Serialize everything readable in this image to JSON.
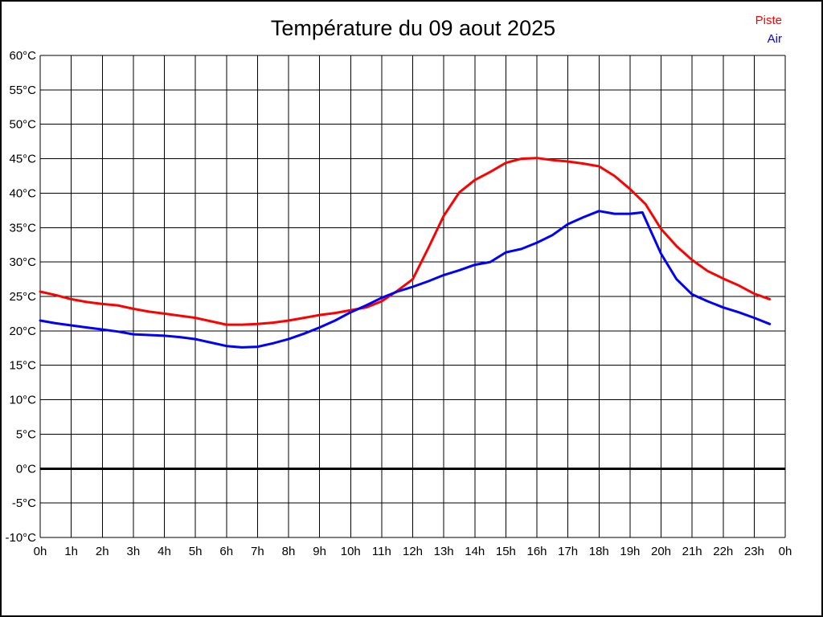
{
  "page": {
    "background": "#ffffff",
    "border_color": "#000000"
  },
  "header": {
    "title": "Température du 09 aout 2025"
  },
  "legend": {
    "items": [
      {
        "label": "Piste",
        "color": "#ff0000"
      },
      {
        "label": "Air",
        "color": "#0000ff"
      }
    ]
  },
  "chart_data": {
    "type": "line",
    "title": "Température du 09 aout 2025",
    "grid": true,
    "legend_position": "top-right",
    "x_axis": {
      "min": 0,
      "max": 24,
      "unit": "h",
      "tick_labels": [
        "0h",
        "1h",
        "2h",
        "3h",
        "4h",
        "5h",
        "6h",
        "7h",
        "8h",
        "9h",
        "10h",
        "11h",
        "12h",
        "13h",
        "14h",
        "15h",
        "16h",
        "17h",
        "18h",
        "19h",
        "20h",
        "21h",
        "22h",
        "23h",
        "0h"
      ]
    },
    "y_axis": {
      "min": -10,
      "max": 60,
      "step": 5,
      "unit": "°C",
      "tick_labels": [
        "60°C",
        "55°C",
        "50°C",
        "45°C",
        "40°C",
        "35°C",
        "30°C",
        "25°C",
        "20°C",
        "15°C",
        "10°C",
        "5°C",
        "0°C",
        "-5°C",
        "-10°C"
      ],
      "zero_line_bold": true
    },
    "series": [
      {
        "name": "Piste",
        "color": "#ff0000",
        "x": [
          0,
          0.5,
          1,
          1.5,
          2,
          2.5,
          3,
          3.5,
          4,
          4.5,
          5,
          5.5,
          6,
          6.5,
          7,
          7.5,
          8,
          8.5,
          9,
          9.5,
          10,
          10.5,
          11,
          11.5,
          12,
          12.5,
          13,
          13.5,
          14,
          14.5,
          15,
          15.5,
          16,
          16.5,
          17,
          17.5,
          18,
          18.5,
          19,
          19.5,
          20,
          20.5,
          21,
          21.5,
          22,
          22.5,
          23,
          23.5
        ],
        "values": [
          25.7,
          25.2,
          24.6,
          24.2,
          23.9,
          23.7,
          23.2,
          22.8,
          22.5,
          22.2,
          21.9,
          21.4,
          20.9,
          20.9,
          21.0,
          21.2,
          21.5,
          21.9,
          22.3,
          22.6,
          23.0,
          23.4,
          24.3,
          25.8,
          27.5,
          32.0,
          36.7,
          40.1,
          41.9,
          43.1,
          44.4,
          45.0,
          45.1,
          44.8,
          44.6,
          44.3,
          43.9,
          42.5,
          40.6,
          38.4,
          34.8,
          32.3,
          30.3,
          28.7,
          27.6,
          26.6,
          25.4,
          24.6
        ]
      },
      {
        "name": "Air",
        "color": "#0000ff",
        "x": [
          0,
          0.5,
          1,
          1.5,
          2,
          2.5,
          3,
          3.5,
          4,
          4.5,
          5,
          5.5,
          6,
          6.5,
          7,
          7.5,
          8,
          8.5,
          9,
          9.5,
          10,
          10.5,
          11,
          11.5,
          12,
          12.5,
          13,
          13.5,
          14,
          14.5,
          15,
          15.5,
          16,
          16.5,
          17,
          17.5,
          18,
          18.5,
          19,
          19.4,
          20,
          20.5,
          21,
          21.5,
          22,
          22.5,
          23,
          23.5
        ],
        "values": [
          21.5,
          21.1,
          20.8,
          20.5,
          20.2,
          19.9,
          19.5,
          19.4,
          19.3,
          19.1,
          18.8,
          18.3,
          17.8,
          17.6,
          17.7,
          18.2,
          18.8,
          19.6,
          20.5,
          21.5,
          22.7,
          23.7,
          24.8,
          25.7,
          26.4,
          27.2,
          28.1,
          28.8,
          29.6,
          30.0,
          31.4,
          31.9,
          32.8,
          33.9,
          35.5,
          36.5,
          37.4,
          37.0,
          37.0,
          37.2,
          31.2,
          27.5,
          25.3,
          24.3,
          23.4,
          22.7,
          21.9,
          21.0
        ]
      }
    ]
  }
}
